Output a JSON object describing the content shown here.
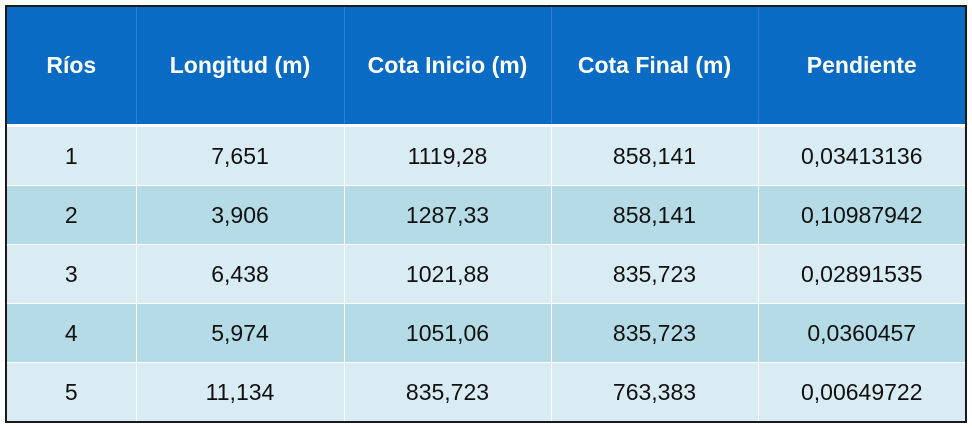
{
  "colors": {
    "header_bg": "#0a6bc4",
    "header_text": "#ffffff",
    "row_odd_bg": "#d9ecf3",
    "row_even_bg": "#b5dbe6",
    "text": "#111111"
  },
  "table": {
    "headers": [
      "Ríos",
      "Longitud (m)",
      "Cota Inicio (m)",
      "Cota Final (m)",
      "Pendiente"
    ],
    "rows": [
      [
        "1",
        "7,651",
        "1119,28",
        "858,141",
        "0,03413136"
      ],
      [
        "2",
        "3,906",
        "1287,33",
        "858,141",
        "0,10987942"
      ],
      [
        "3",
        "6,438",
        "1021,88",
        "835,723",
        "0,02891535"
      ],
      [
        "4",
        "5,974",
        "1051,06",
        "835,723",
        "0,0360457"
      ],
      [
        "5",
        "11,134",
        "835,723",
        "763,383",
        "0,00649722"
      ]
    ]
  }
}
